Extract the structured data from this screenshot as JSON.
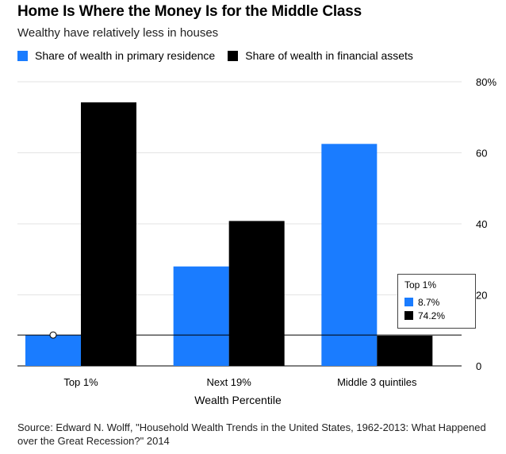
{
  "header": {
    "title": "Home Is Where the Money Is for the Middle Class",
    "subtitle": "Wealthy have relatively less in houses"
  },
  "legend": {
    "items": [
      {
        "label": "Share of wealth in primary residence",
        "color": "#1a7cff"
      },
      {
        "label": "Share of wealth in financial assets",
        "color": "#000000"
      }
    ]
  },
  "tooltip": {
    "category": "Top 1%",
    "rows": [
      {
        "value": "8.7%",
        "color": "#1a7cff"
      },
      {
        "value": "74.2%",
        "color": "#000000"
      }
    ]
  },
  "source": "Source: Edward N. Wolff, \"Household Wealth Trends in the United States, 1962-2013: What Happened over the Great Recession?\" 2014",
  "chart_data": {
    "type": "bar",
    "categories": [
      "Top 1%",
      "Next 19%",
      "Middle 3 quintiles"
    ],
    "series": [
      {
        "name": "Share of wealth in primary residence",
        "values": [
          8.7,
          28.0,
          62.5
        ],
        "color": "#1a7cff"
      },
      {
        "name": "Share of wealth in financial assets",
        "values": [
          74.2,
          40.8,
          8.5
        ],
        "color": "#000000"
      }
    ],
    "xlabel": "Wealth Percentile",
    "ylabel": "",
    "ylim": [
      0,
      80
    ],
    "yticks": [
      0,
      20,
      40,
      60,
      80
    ],
    "ytick_labels": [
      "0",
      "20",
      "40",
      "60",
      "80%"
    ],
    "grid": true,
    "legend_position": "top-left",
    "highlight_line_value": 8.7
  }
}
